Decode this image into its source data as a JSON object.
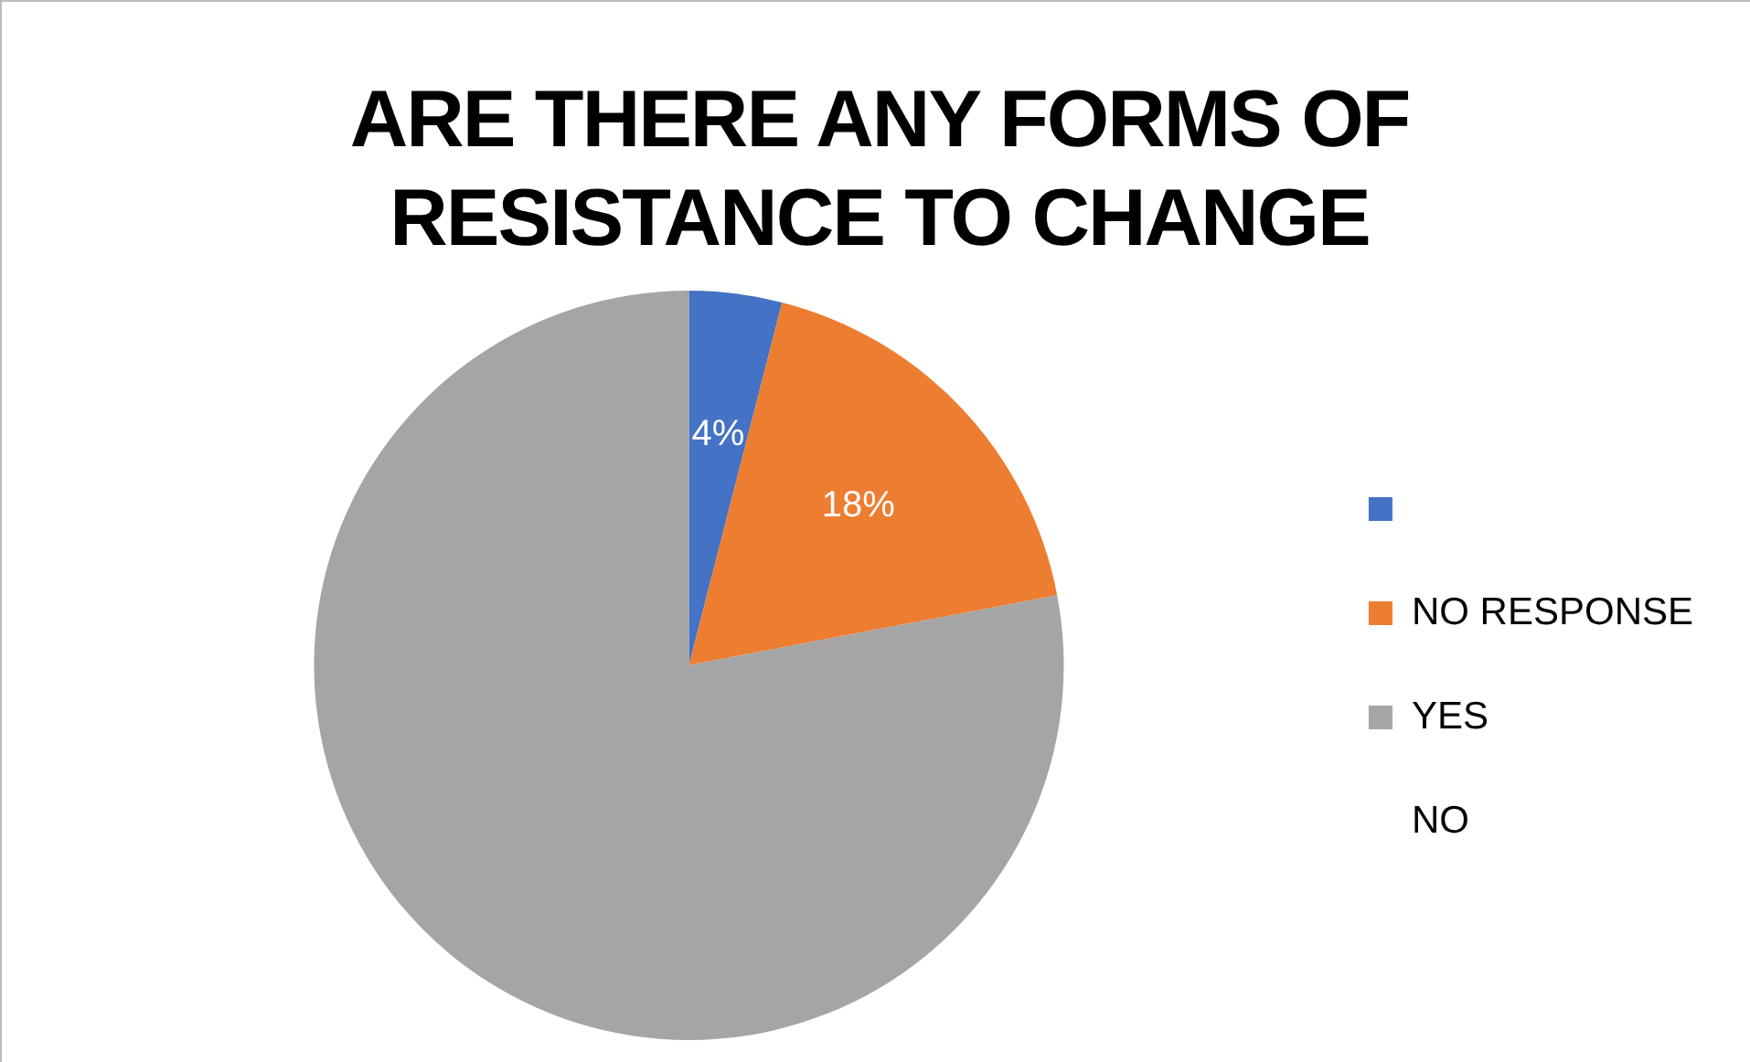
{
  "chart_data": {
    "type": "pie",
    "title": "ARE THERE ANY FORMS OF RESISTANCE TO CHANGE",
    "categories": [
      null,
      "NO RESPONSE",
      "YES",
      "NO"
    ],
    "values": [
      4,
      18,
      78,
      0
    ],
    "colors": [
      "#4472c4",
      "#ed7d31",
      "#a5a5a5",
      "#ffffff"
    ],
    "value_labels": [
      "4%",
      "18%",
      null,
      null
    ],
    "legend": "right"
  }
}
